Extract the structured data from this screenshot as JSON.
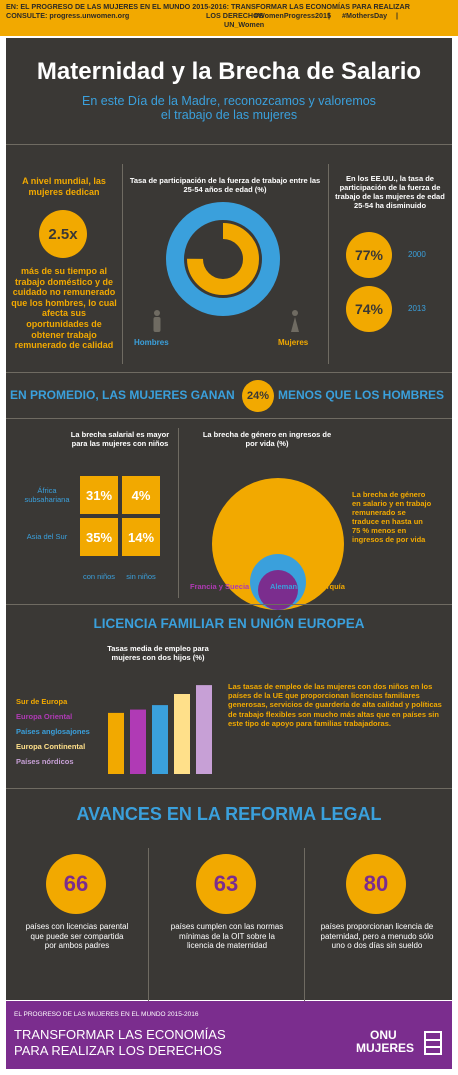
{
  "banner": {
    "line1": "EN: EL PROGRESO DE LAS MUJERES EN EL MUNDO 2015-2016: TRANSFORMAR LAS ECONOMÍAS PARA REALIZAR",
    "line2": "CONSULTE: progress.unwomen.org",
    "line2b": "LOS DERECHOS",
    "line2c": "#WomenProgress2015",
    "line2d": "#MothersDay",
    "line3": "UN_Women"
  },
  "header": {
    "title": "Maternidad y la Brecha de Salario",
    "subtitle_line1": "En este Día de la Madre, reconozcamos y valoremos",
    "subtitle_line2": "el trabajo de las mujeres"
  },
  "section1": {
    "left_intro": "A nivel mundial, las mujeres dedican",
    "left_value": "2.5x",
    "left_text": "más de su tiempo al trabajo doméstico y de cuidado no remunerado que los hombres, lo cual afecta sus oportunidades de obtener trabajo remunerado de calidad",
    "mid_title": "Tasa de participación de la fuerza de trabajo entre las 25-54 años de edad (%)",
    "mid_label_men": "Hombres",
    "mid_label_women": "Mujeres",
    "right_title": "En los EE.UU., la tasa de participación de la fuerza de trabajo de las mujeres de edad 25-54 ha disminuido",
    "right_value1": "77%",
    "right_year1": "2000",
    "right_value2": "74%",
    "right_year2": "2013",
    "colors": {
      "men": "#3aa0dc",
      "women": "#f2a900"
    }
  },
  "section2": {
    "headline_pre": "EN PROMEDIO, LAS MUJERES GANAN",
    "headline_value": "24%",
    "headline_post": "MENOS QUE LOS HOMBRES",
    "grid_title": "La brecha salarial es mayor para las mujeres con niños",
    "row1_label": "África subsahariana",
    "row2_label": "Asia del Sur",
    "cells": [
      "31%",
      "4%",
      "35%",
      "14%"
    ],
    "col1_label": "con niños",
    "col2_label": "sin niños",
    "circles_title": "La brecha de género en ingresos de por vida (%)",
    "circles_text": "La brecha de género en salario y en trabajo remunerado se traduce en hasta un 75 % menos en ingresos de por vida",
    "legend1": "Francia y Suecia",
    "legend2": "Alemania",
    "legend3": "Turquía"
  },
  "section3": {
    "headline": "LICENCIA FAMILIAR EN UNIÓN EUROPEA",
    "chart_title": "Tasas media de empleo para mujeres con dos hijos (%)",
    "legend": [
      "Sur de Europa",
      "Europa Oriental",
      "Países anglosajones",
      "Europa Continental",
      "Países nórdicos"
    ],
    "text": "Las tasas de empleo de las mujeres con dos niños en los países de la UE que proporcionan licencias familiares generosas, servicios de guardería de alta calidad y políticas de trabajo flexibles son mucho más altas que en países sin este tipo de apoyo para familias trabajadoras."
  },
  "chart_data": {
    "type": "bar",
    "title": "Tasas media de empleo para mujeres con dos hijos (%)",
    "categories": [
      "Sur de Europa",
      "Europa Oriental",
      "Países anglosajones",
      "Europa Continental",
      "Países nórdicos"
    ],
    "values": [
      55,
      58,
      62,
      72,
      80
    ],
    "colors": [
      "#f2a900",
      "#b03ab5",
      "#3aa0dc",
      "#ffe08a",
      "#c7a0d6"
    ]
  },
  "section4": {
    "headline": "AVANCES EN LA REFORMA LEGAL",
    "items": [
      {
        "value": "66",
        "text": "países con licencias parental que puede ser compartida por ambos padres"
      },
      {
        "value": "63",
        "text": "países cumplen con las normas mínimas de la OIT sobre la licencia de maternidad"
      },
      {
        "value": "80",
        "text": "países proporcionan licencia de paternidad, pero a menudo sólo uno o dos días sin sueldo"
      }
    ]
  },
  "footer": {
    "small": "EL PROGRESO DE LAS MUJERES EN EL MUNDO 2015-2016",
    "line1": "TRANSFORMAR LAS ECONOMÍAS",
    "line2": "PARA REALIZAR LOS DERECHOS",
    "logo_line1": "ONU",
    "logo_line2": "MUJERES"
  }
}
